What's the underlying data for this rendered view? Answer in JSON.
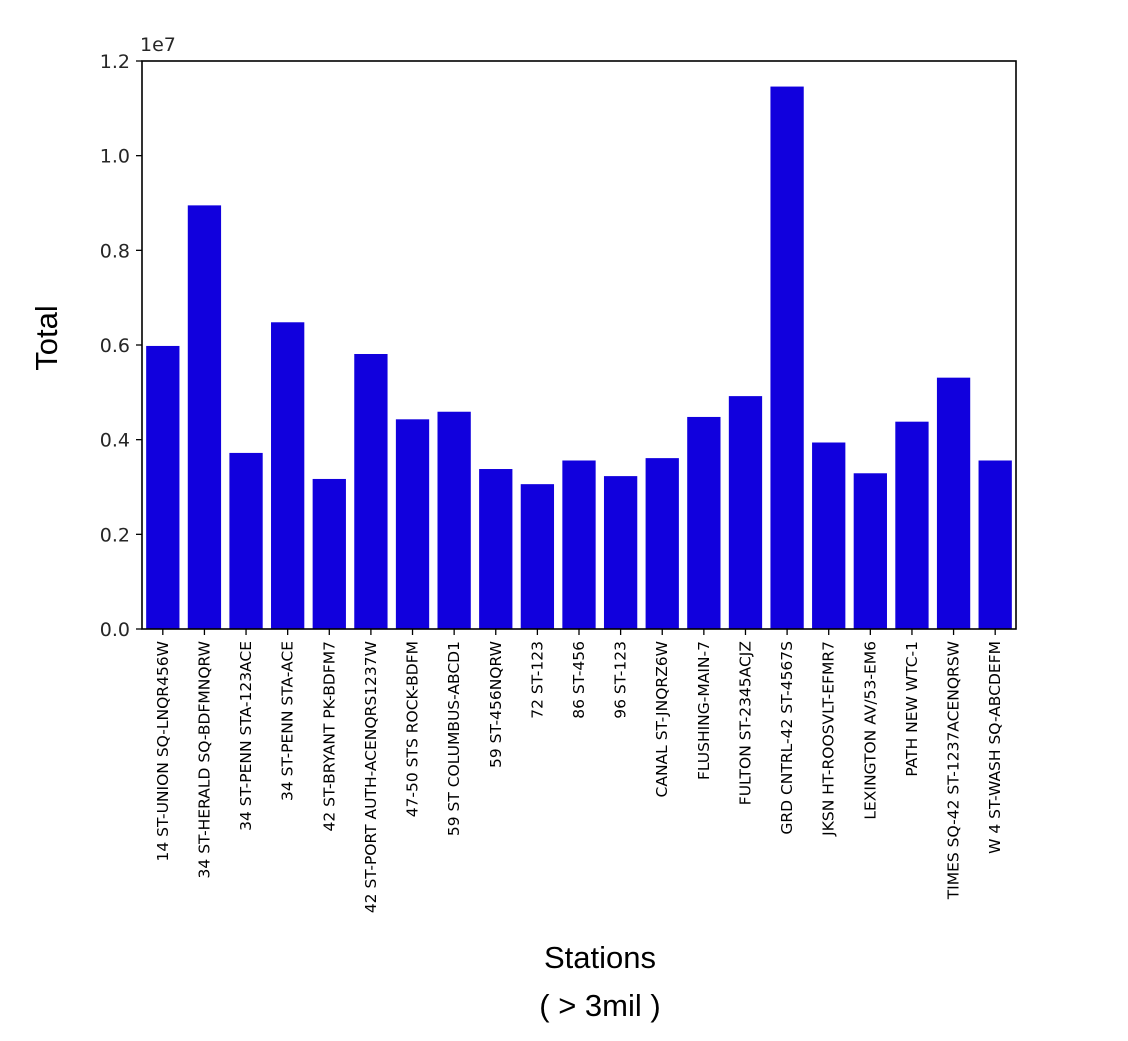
{
  "chart_data": {
    "type": "bar",
    "title": "",
    "xlabel": "Stations",
    "xlabel_sub": "( > 3mil )",
    "ylabel": "Total",
    "y_offset_label": "1e7",
    "ylim": [
      0,
      12000000
    ],
    "yticks": [
      0,
      2000000,
      4000000,
      6000000,
      8000000,
      10000000,
      12000000
    ],
    "ytick_labels": [
      "0.0",
      "0.2",
      "0.4",
      "0.6",
      "0.8",
      "1.0",
      "1.2"
    ],
    "grid": false,
    "legend": "none",
    "bar_color": "#1100dd",
    "categories": [
      "14 ST-UNION SQ-LNQR456W",
      "34 ST-HERALD SQ-BDFMNQRW",
      "34 ST-PENN STA-123ACE",
      "34 ST-PENN STA-ACE",
      "42 ST-BRYANT PK-BDFM7",
      "42 ST-PORT AUTH-ACENQRS1237W",
      "47-50 STS ROCK-BDFM",
      "59 ST COLUMBUS-ABCD1",
      "59 ST-456NQRW",
      "72 ST-123",
      "86 ST-456",
      "96 ST-123",
      "CANAL ST-JNQRZ6W",
      "FLUSHING-MAIN-7",
      "FULTON ST-2345ACJZ",
      "GRD CNTRL-42 ST-4567S",
      "JKSN HT-ROOSVLT-EFMR7",
      "LEXINGTON AV/53-EM6",
      "PATH NEW WTC-1",
      "TIMES SQ-42 ST-1237ACENQRSW",
      "W 4 ST-WASH SQ-ABCDEFM"
    ],
    "values": [
      5980000,
      8950000,
      3720000,
      6480000,
      3170000,
      5810000,
      4430000,
      4590000,
      3380000,
      3060000,
      3560000,
      3230000,
      3610000,
      4480000,
      4920000,
      11460000,
      3940000,
      3290000,
      4380000,
      5310000,
      3560000
    ]
  }
}
